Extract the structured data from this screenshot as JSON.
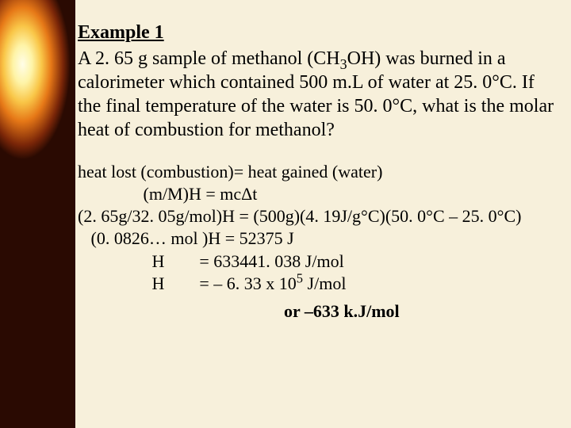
{
  "title": "Example 1",
  "problem": {
    "p1a": "A 2. 65 g sample of methanol (CH",
    "p1sub": "3",
    "p1b": "OH) was burned in a calorimeter which contained 500 m.L of water at 25. 0°C. If the final temperature of the water is 50. 0°C, what is the molar heat of combustion for methanol?"
  },
  "work": {
    "l1": "heat lost (combustion)= heat gained (water)",
    "l2": "               (m/M)H = mcΔt",
    "l3": "(2. 65g/32. 05g/mol)H = (500g)(4. 19J/g°C)(50. 0°C – 25. 0°C)",
    "l4": "   (0. 0826… mol )H = 52375 J",
    "l5": "                 H        = 633441. 038 J/mol",
    "l6a": "                 H        = – 6. 33 x 10",
    "l6sup": "5",
    "l6b": " J/mol"
  },
  "result": "or –633 k.J/mol",
  "colors": {
    "page_bg": "#f7f0db",
    "text": "#000000",
    "flame_dark": "#2a0a02",
    "flame_mid": "#e67817",
    "flame_light": "#fffde8"
  },
  "typography": {
    "title_fontsize": 24,
    "body_fontsize": 24,
    "work_fontsize": 22,
    "font_family": "Times New Roman"
  }
}
